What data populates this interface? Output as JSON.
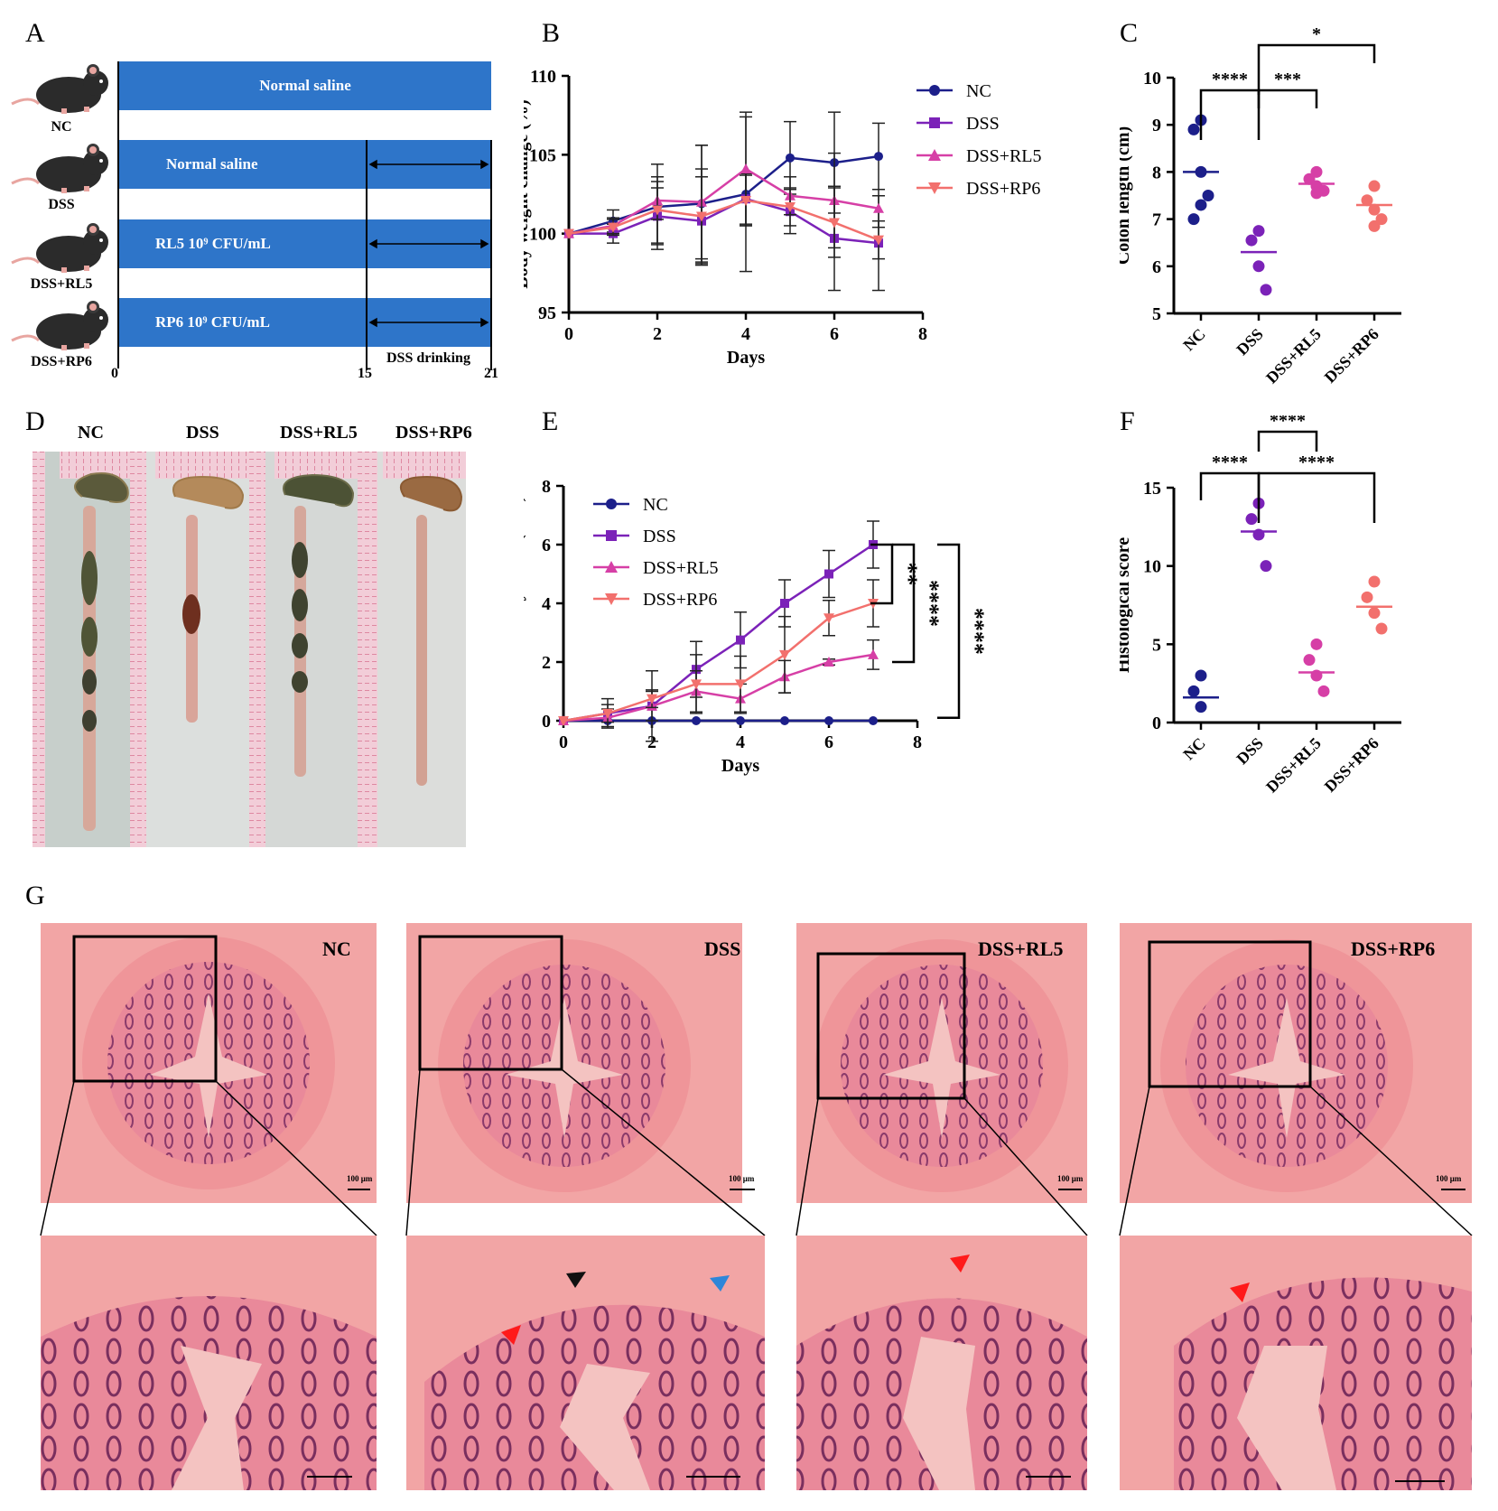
{
  "panel_labels": {
    "a": "A",
    "b": "B",
    "c": "C",
    "d": "D",
    "e": "E",
    "f": "F",
    "g": "G"
  },
  "panel_a": {
    "groups": [
      "NC",
      "DSS",
      "DSS+RL5",
      "DSS+RP6"
    ],
    "bars": [
      "Normal saline",
      "Normal saline",
      "RL5 10⁹ CFU/mL",
      "RP6 10⁹ CFU/mL"
    ],
    "axis_ticks": [
      "0",
      "15",
      "21"
    ],
    "dss_label": "DSS drinking",
    "bar_color": "#2e75c9"
  },
  "panel_d": {
    "groups": [
      "NC",
      "DSS",
      "DSS+RL5",
      "DSS+RP6"
    ]
  },
  "panel_g": {
    "groups": [
      "NC",
      "DSS",
      "DSS+RL5",
      "DSS+RP6"
    ],
    "scale_text": "100 μm",
    "arrow_colors": {
      "red": "#ff1a1a",
      "black": "#111111",
      "blue": "#2e86d9"
    }
  },
  "chart_data": [
    {
      "id": "B",
      "type": "line",
      "xlabel": "Days",
      "ylabel": "Body weight change (%)",
      "xlim": [
        0,
        8
      ],
      "ylim": [
        95,
        110
      ],
      "xticks": [
        0,
        2,
        4,
        6,
        8
      ],
      "yticks": [
        95,
        100,
        105,
        110
      ],
      "x": [
        0,
        1,
        2,
        3,
        4,
        5,
        6,
        7
      ],
      "legend": "top-right",
      "series": [
        {
          "name": "NC",
          "color": "#1c1f8a",
          "marker": "circle",
          "values": [
            100,
            100.8,
            101.7,
            101.9,
            102.5,
            104.8,
            104.5,
            104.9
          ],
          "err": [
            0,
            0.7,
            2.7,
            3.7,
            4.9,
            2.3,
            3.2,
            2.1
          ]
        },
        {
          "name": "DSS",
          "color": "#7b22b8",
          "marker": "square",
          "values": [
            100,
            100,
            101.1,
            100.8,
            102.2,
            101.4,
            99.7,
            99.4
          ],
          "err": [
            0,
            0.6,
            1.8,
            2.8,
            1.6,
            1.4,
            3.3,
            3.0
          ]
        },
        {
          "name": "DSS+RL5",
          "color": "#d63fa6",
          "marker": "triangle-up",
          "values": [
            100,
            100.5,
            102.1,
            102,
            104.1,
            102.4,
            102.1,
            101.6
          ],
          "err": [
            0,
            0.5,
            1.2,
            3.6,
            3.6,
            1.2,
            3.0,
            1.2
          ]
        },
        {
          "name": "DSS+RP6",
          "color": "#f2706d",
          "marker": "triangle-down",
          "values": [
            100,
            100.4,
            101.5,
            101.1,
            102.1,
            101.7,
            100.7,
            99.6
          ],
          "err": [
            0,
            0.5,
            2.1,
            3.0,
            1.6,
            1.2,
            2.2,
            1.2
          ]
        }
      ]
    },
    {
      "id": "C",
      "type": "scatter",
      "ylabel": "Colon length (cm)",
      "ylim": [
        5,
        10
      ],
      "yticks": [
        5,
        6,
        7,
        8,
        9,
        10
      ],
      "categories": [
        "NC",
        "DSS",
        "DSS+RL5",
        "DSS+RP6"
      ],
      "groups": [
        {
          "name": "NC",
          "color": "#1c1f8a",
          "mean": 8.0,
          "points": [
            9.1,
            8.9,
            8.0,
            7.5,
            7.3,
            7.0
          ]
        },
        {
          "name": "DSS",
          "color": "#7b22b8",
          "mean": 6.3,
          "points": [
            6.75,
            6.55,
            6.0,
            5.5
          ]
        },
        {
          "name": "DSS+RL5",
          "color": "#d63fa6",
          "mean": 7.75,
          "points": [
            8.0,
            7.85,
            7.7,
            7.6,
            7.55
          ]
        },
        {
          "name": "DSS+RP6",
          "color": "#f2706d",
          "mean": 7.3,
          "points": [
            7.7,
            7.4,
            7.2,
            7.0,
            6.85
          ]
        }
      ],
      "brackets": [
        {
          "from": 0,
          "to": 1,
          "label": "****",
          "level": "low"
        },
        {
          "from": 1,
          "to": 2,
          "label": "***",
          "level": "low"
        },
        {
          "from": 1,
          "to": 3,
          "label": "*",
          "level": "high"
        }
      ]
    },
    {
      "id": "E",
      "type": "line",
      "xlabel": "Days",
      "ylabel": "Disease activity index (DAI)",
      "xlim": [
        0,
        8
      ],
      "ylim": [
        0,
        8
      ],
      "xticks": [
        0,
        2,
        4,
        6,
        8
      ],
      "yticks": [
        0,
        2,
        4,
        6,
        8
      ],
      "x": [
        0,
        1,
        2,
        3,
        4,
        5,
        6,
        7
      ],
      "legend": "top-left",
      "series": [
        {
          "name": "NC",
          "color": "#1c1f8a",
          "marker": "circle",
          "values": [
            0,
            0,
            0,
            0,
            0,
            0,
            0,
            0
          ],
          "err": [
            0,
            0,
            0,
            0,
            0,
            0,
            0,
            0
          ]
        },
        {
          "name": "DSS",
          "color": "#7b22b8",
          "marker": "square",
          "values": [
            0,
            0.25,
            0.5,
            1.75,
            2.75,
            4.0,
            5.0,
            6.0
          ],
          "err": [
            0,
            0.5,
            1.2,
            0.95,
            0.95,
            0.8,
            0.8,
            0.8
          ]
        },
        {
          "name": "DSS+RL5",
          "color": "#d63fa6",
          "marker": "triangle-up",
          "values": [
            0,
            0.1,
            0.5,
            1.0,
            0.75,
            1.5,
            2.0,
            2.25
          ],
          "err": [
            0,
            0.3,
            0.5,
            0.7,
            0.5,
            0.55,
            0.1,
            0.5
          ]
        },
        {
          "name": "DSS+RP6",
          "color": "#f2706d",
          "marker": "triangle-down",
          "values": [
            0,
            0.25,
            0.75,
            1.25,
            1.25,
            2.25,
            3.5,
            4.0
          ],
          "err": [
            0,
            0.3,
            0.3,
            1.0,
            0.95,
            1.3,
            0.6,
            0.8
          ]
        }
      ],
      "significance": [
        "**",
        "****",
        "****"
      ]
    },
    {
      "id": "F",
      "type": "scatter",
      "ylabel": "Histological score",
      "ylim": [
        0,
        15
      ],
      "yticks": [
        0,
        5,
        10,
        15
      ],
      "categories": [
        "NC",
        "DSS",
        "DSS+RL5",
        "DSS+RP6"
      ],
      "groups": [
        {
          "name": "NC",
          "color": "#1c1f8a",
          "mean": 1.6,
          "points": [
            3,
            2,
            1
          ]
        },
        {
          "name": "DSS",
          "color": "#7b22b8",
          "mean": 12.2,
          "points": [
            14,
            13,
            12,
            10
          ]
        },
        {
          "name": "DSS+RL5",
          "color": "#d63fa6",
          "mean": 3.2,
          "points": [
            5,
            4,
            3,
            2
          ]
        },
        {
          "name": "DSS+RP6",
          "color": "#f2706d",
          "mean": 7.4,
          "points": [
            9,
            8,
            7,
            6
          ]
        }
      ],
      "brackets": [
        {
          "from": 0,
          "to": 1,
          "label": "****",
          "level": "low"
        },
        {
          "from": 1,
          "to": 3,
          "label": "****",
          "level": "low"
        },
        {
          "from": 1,
          "to": 2,
          "label": "****",
          "level": "high"
        }
      ]
    }
  ]
}
